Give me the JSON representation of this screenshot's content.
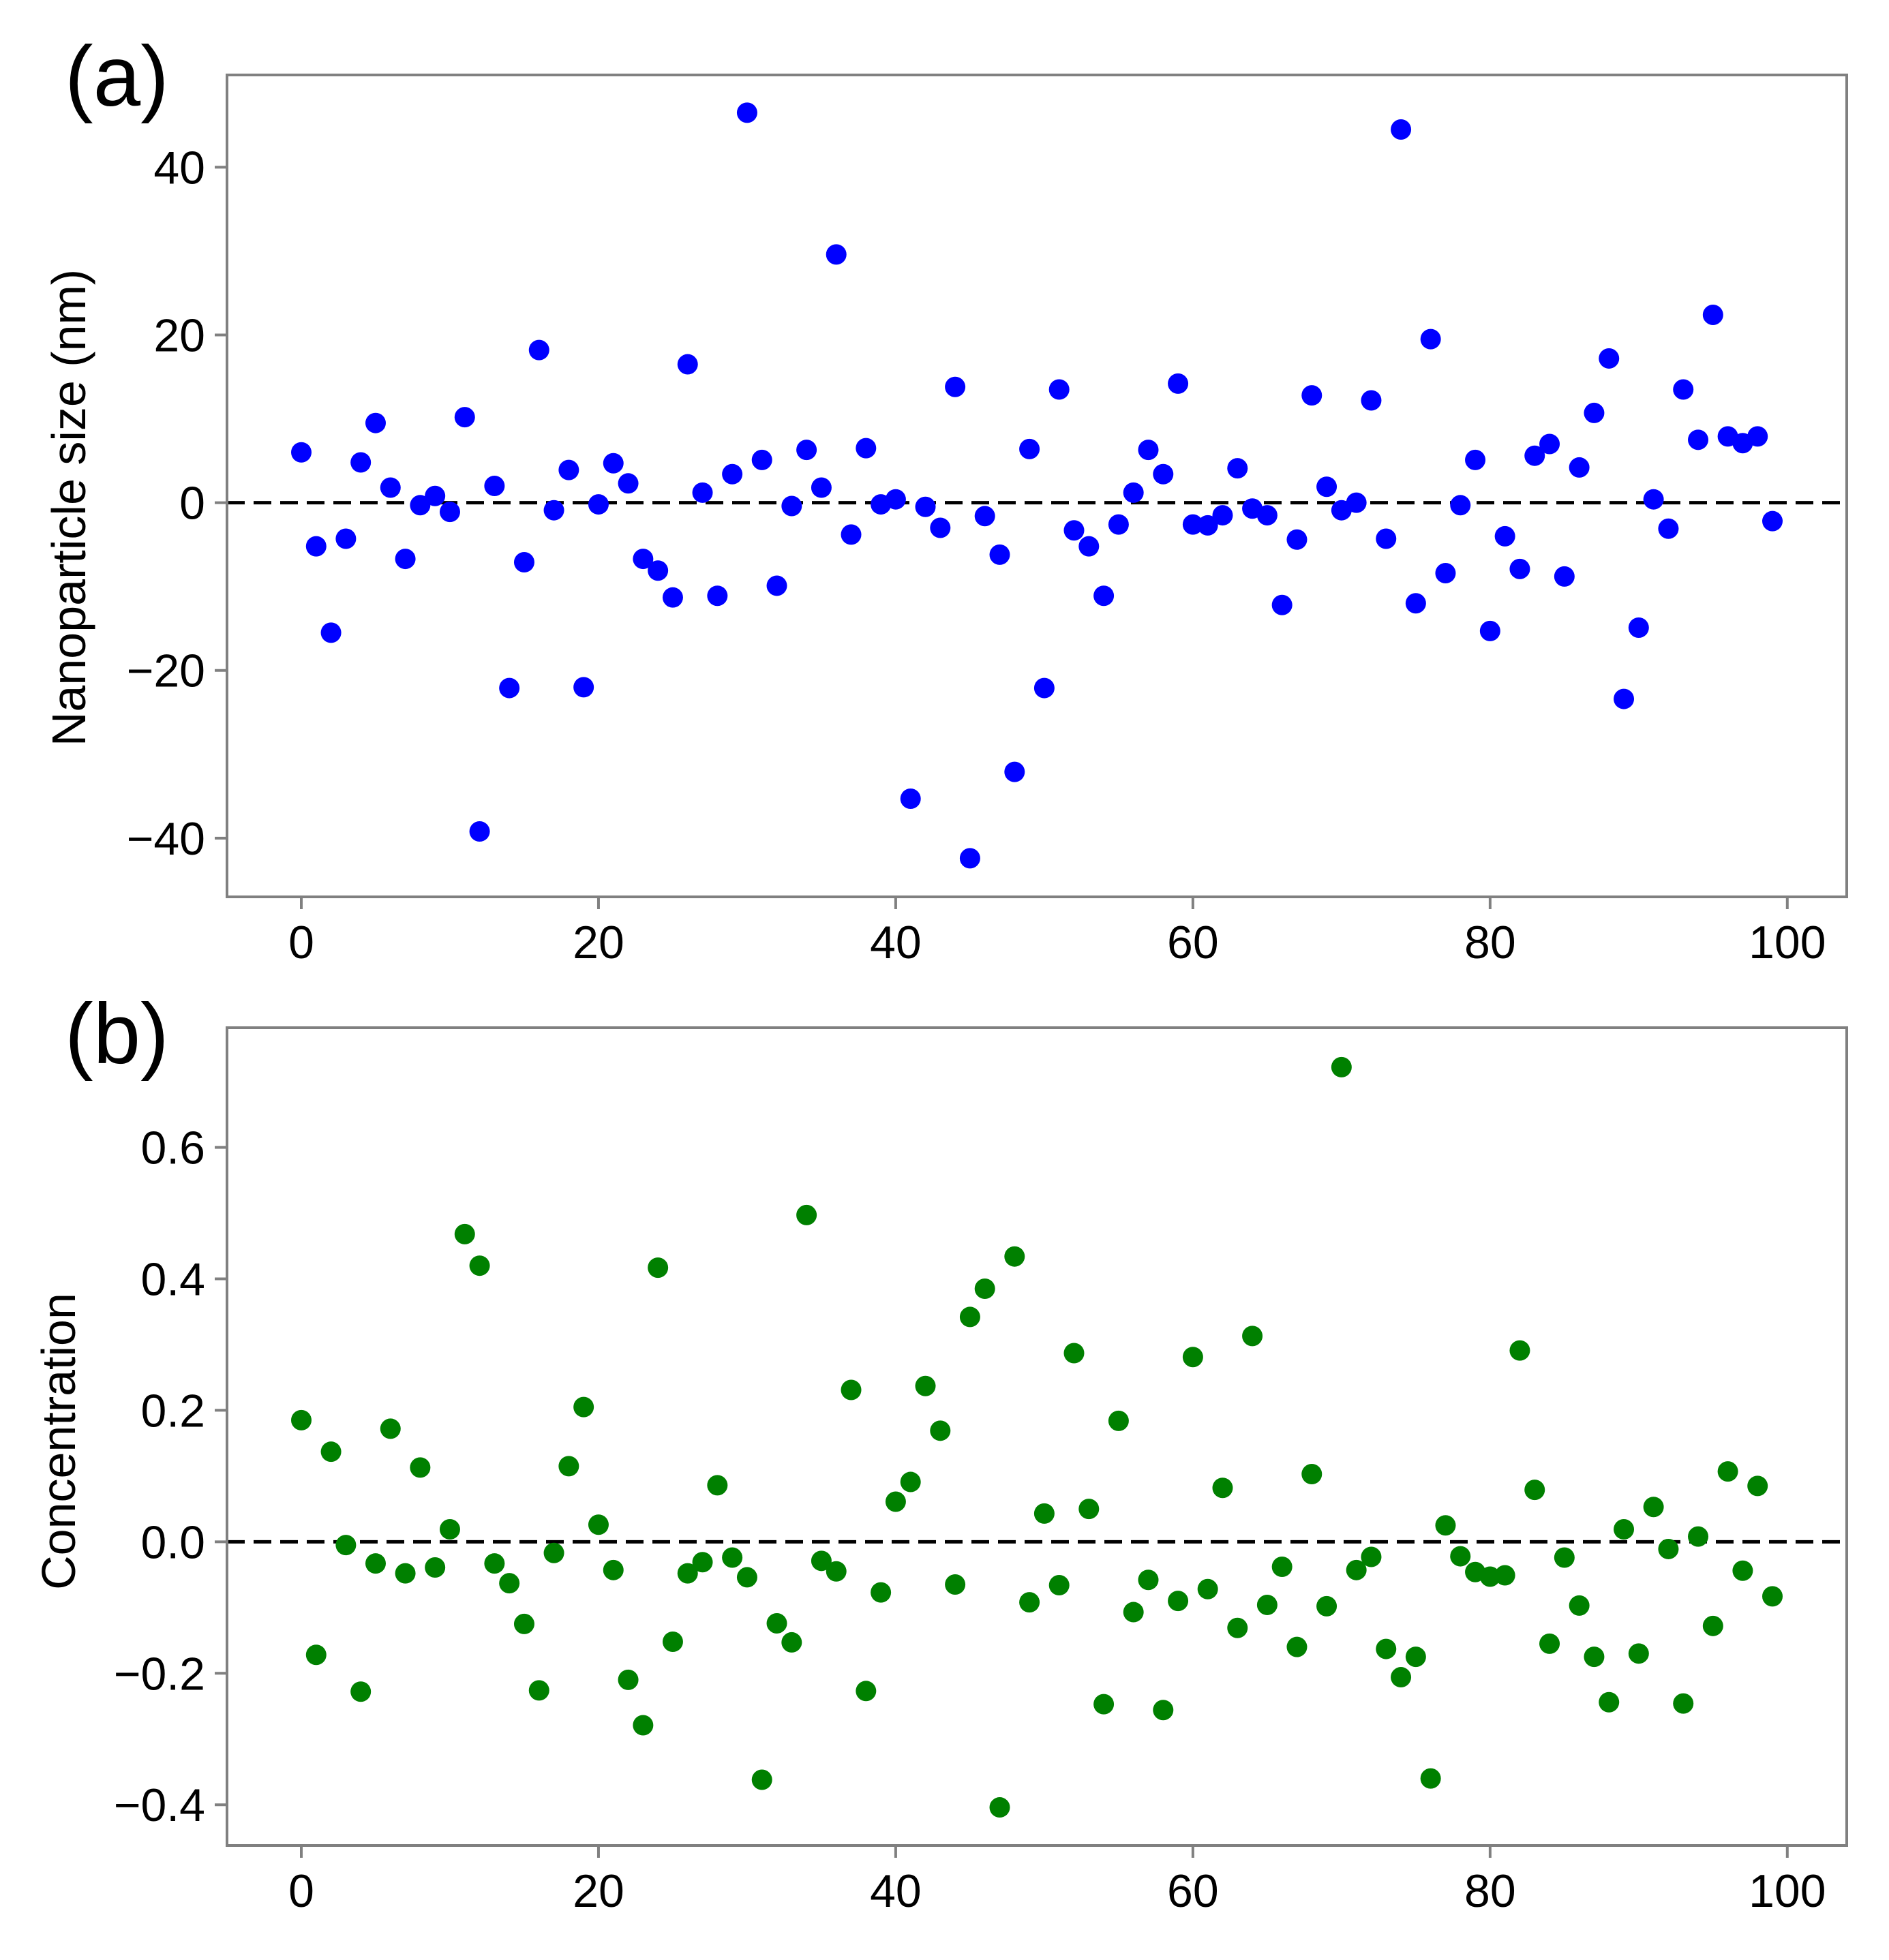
{
  "chart_data": [
    {
      "type": "scatter",
      "panel_label": "(a)",
      "title": "",
      "xlabel": "",
      "ylabel": "Nanoparticle size (nm)",
      "xlim": [
        -5,
        104
      ],
      "ylim": [
        -47,
        51
      ],
      "xticks": [
        0,
        20,
        40,
        60,
        80,
        100
      ],
      "xtick_labels": [
        "0",
        "20",
        "40",
        "60",
        "80",
        "100"
      ],
      "yticks": [
        -40,
        -20,
        0,
        20,
        40
      ],
      "ytick_labels": [
        "−40",
        "−20",
        "0",
        "20",
        "40"
      ],
      "grid": false,
      "reference_line": 0,
      "marker_color": "#0000ff",
      "series": [
        {
          "name": "nanoparticle-size",
          "x": [
            0,
            1,
            2,
            3,
            4,
            5,
            6,
            7,
            8,
            9,
            10,
            11,
            12,
            13,
            14,
            15,
            16,
            17,
            18,
            19,
            20,
            21,
            22,
            23,
            24,
            25,
            26,
            27,
            28,
            29,
            30,
            31,
            32,
            33,
            34,
            35,
            36,
            37,
            38,
            39,
            40,
            41,
            42,
            43,
            44,
            45,
            46,
            47,
            48,
            49,
            50,
            51,
            52,
            53,
            54,
            55,
            56,
            57,
            58,
            59,
            60,
            61,
            62,
            63,
            64,
            65,
            66,
            67,
            68,
            69,
            70,
            71,
            72,
            73,
            74,
            75,
            76,
            77,
            78,
            79,
            80,
            81,
            82,
            83,
            84,
            85,
            86,
            87,
            88,
            89,
            90,
            91,
            92,
            93,
            94,
            95,
            96,
            97,
            98,
            99
          ],
          "y": [
            6,
            -5.2,
            -15.5,
            -4.3,
            4.8,
            9.5,
            1.8,
            -6.7,
            -0.3,
            0.8,
            -1.1,
            10.2,
            -39.2,
            2.0,
            -22.1,
            -7.1,
            18.2,
            -0.9,
            3.9,
            -22.0,
            -0.2,
            4.7,
            2.3,
            -6.7,
            -8.1,
            -11.3,
            16.5,
            1.2,
            -11.1,
            3.4,
            46.5,
            5.1,
            -9.9,
            -0.4,
            6.3,
            1.8,
            29.6,
            -3.8,
            6.5,
            -0.2,
            0.4,
            -35.3,
            -0.5,
            -3.0,
            13.8,
            -42.4,
            -1.6,
            -6.2,
            -32.1,
            6.4,
            -22.1,
            13.5,
            -3.3,
            -5.2,
            -11.1,
            -2.6,
            1.2,
            6.3,
            3.4,
            14.2,
            -2.6,
            -2.7,
            -1.5,
            4.1,
            -0.7,
            -1.5,
            -12.2,
            -4.4,
            12.8,
            1.9,
            -0.9,
            0.0,
            12.2,
            -4.3,
            44.5,
            -12.0,
            19.5,
            -8.4,
            -0.3,
            5.1,
            -15.3,
            -4.0,
            -7.9,
            5.6,
            7.0,
            -8.8,
            4.2,
            10.7,
            17.2,
            -23.4,
            -14.9,
            0.4,
            -3.1,
            13.5,
            7.5,
            22.4,
            7.9,
            7.1,
            7.9,
            -2.2
          ]
        }
      ]
    },
    {
      "type": "scatter",
      "panel_label": "(b)",
      "title": "",
      "xlabel": "",
      "ylabel": "Concentration",
      "xlim": [
        -5,
        104
      ],
      "ylim": [
        -0.462,
        0.782
      ],
      "xticks": [
        0,
        20,
        40,
        60,
        80,
        100
      ],
      "xtick_labels": [
        "0",
        "20",
        "40",
        "60",
        "80",
        "100"
      ],
      "yticks": [
        -0.4,
        -0.2,
        0.0,
        0.2,
        0.4,
        0.6
      ],
      "ytick_labels": [
        "−0.4",
        "−0.2",
        "0.0",
        "0.2",
        "0.4",
        "0.6"
      ],
      "grid": false,
      "reference_line": 0,
      "marker_color": "#008000",
      "series": [
        {
          "name": "concentration",
          "x": [
            0,
            1,
            2,
            3,
            4,
            5,
            6,
            7,
            8,
            9,
            10,
            11,
            12,
            13,
            14,
            15,
            16,
            17,
            18,
            19,
            20,
            21,
            22,
            23,
            24,
            25,
            26,
            27,
            28,
            29,
            30,
            31,
            32,
            33,
            34,
            35,
            36,
            37,
            38,
            39,
            40,
            41,
            42,
            43,
            44,
            45,
            46,
            47,
            48,
            49,
            50,
            51,
            52,
            53,
            54,
            55,
            56,
            57,
            58,
            59,
            60,
            61,
            62,
            63,
            64,
            65,
            66,
            67,
            68,
            69,
            70,
            71,
            72,
            73,
            74,
            75,
            76,
            77,
            78,
            79,
            80,
            81,
            82,
            83,
            84,
            85,
            86,
            87,
            88,
            89,
            90,
            91,
            92,
            93,
            94,
            95,
            96,
            97,
            98,
            99
          ],
          "y": [
            0.185,
            -0.172,
            0.137,
            -0.005,
            -0.228,
            -0.033,
            0.172,
            -0.048,
            0.113,
            -0.039,
            0.019,
            0.468,
            0.42,
            -0.033,
            -0.063,
            -0.125,
            -0.226,
            -0.017,
            0.115,
            0.205,
            0.026,
            -0.043,
            -0.21,
            -0.279,
            0.417,
            -0.152,
            -0.048,
            -0.031,
            0.086,
            -0.024,
            -0.054,
            -0.362,
            -0.124,
            -0.153,
            0.497,
            -0.029,
            -0.045,
            0.231,
            -0.227,
            -0.077,
            0.061,
            0.091,
            0.237,
            0.169,
            -0.065,
            0.342,
            0.385,
            -0.404,
            0.434,
            -0.092,
            0.043,
            -0.066,
            0.287,
            0.05,
            -0.247,
            0.184,
            -0.107,
            -0.058,
            -0.256,
            -0.09,
            0.281,
            -0.072,
            0.082,
            -0.131,
            0.313,
            -0.096,
            -0.038,
            -0.16,
            0.103,
            -0.098,
            0.722,
            -0.043,
            -0.023,
            -0.163,
            -0.206,
            -0.175,
            -0.36,
            0.025,
            -0.022,
            -0.046,
            -0.053,
            -0.051,
            0.291,
            0.079,
            -0.155,
            -0.024,
            -0.097,
            -0.175,
            -0.244,
            0.019,
            -0.17,
            0.053,
            -0.011,
            -0.246,
            0.008,
            -0.128,
            0.107,
            -0.044,
            0.085,
            -0.083
          ]
        }
      ]
    }
  ]
}
